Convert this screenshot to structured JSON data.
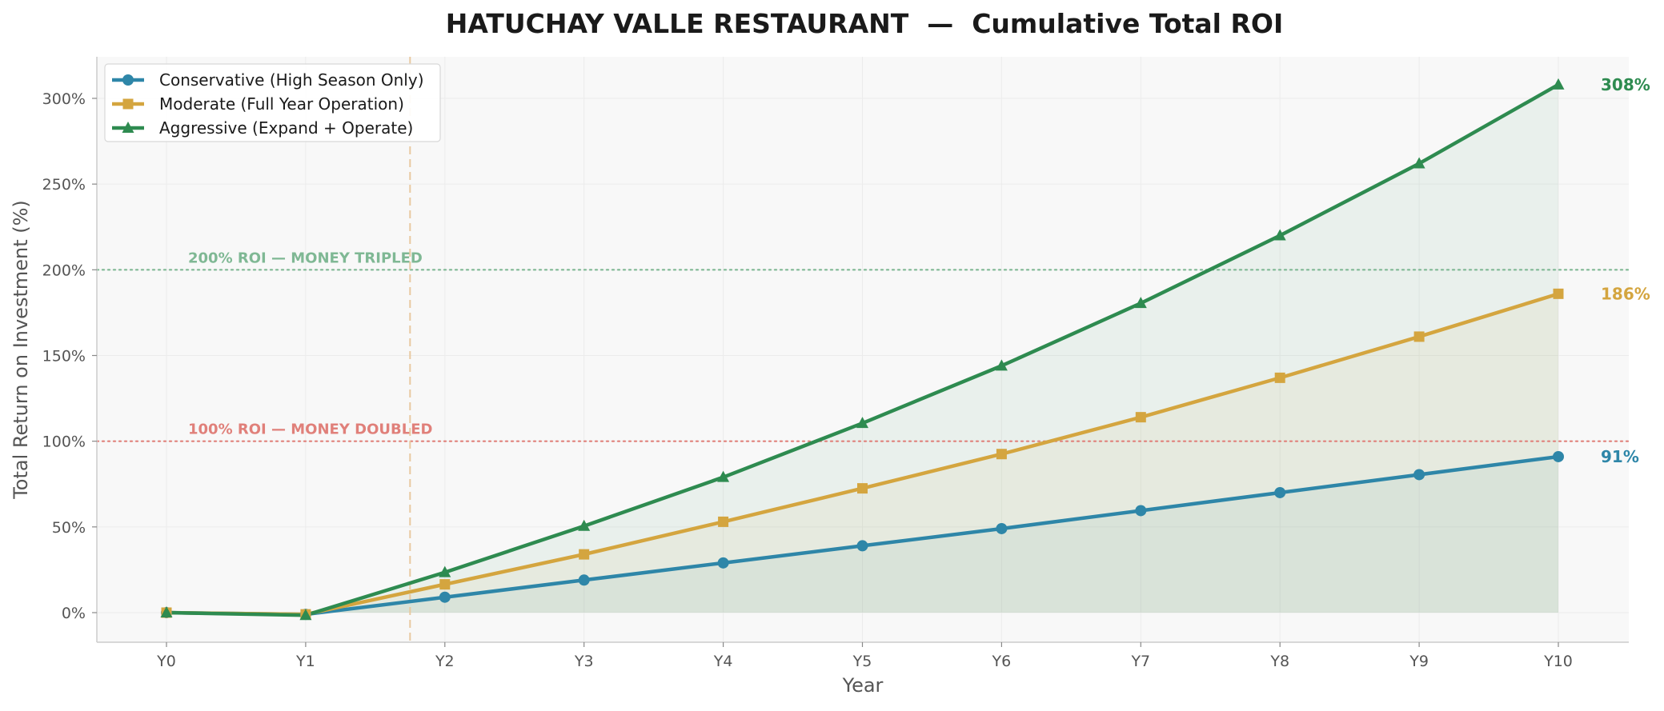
{
  "chart_data": {
    "type": "line",
    "title": "HATUCHAY VALLE RESTAURANT  —  Cumulative Total ROI",
    "xlabel": "Year",
    "ylabel": "Total Return on Investment (%)",
    "categories": [
      "Y0",
      "Y1",
      "Y2",
      "Y3",
      "Y4",
      "Y5",
      "Y6",
      "Y7",
      "Y8",
      "Y9",
      "Y10"
    ],
    "ylim": [
      -16,
      325
    ],
    "yticks": [
      0,
      50,
      100,
      150,
      200,
      250,
      300
    ],
    "ytick_labels": [
      "0%",
      "50%",
      "100%",
      "150%",
      "200%",
      "250%",
      "300%"
    ],
    "grid": true,
    "legend_position": "top-left",
    "marker_line_after": "Y1",
    "series": [
      {
        "name": "Conservative (High Season Only)",
        "color": "#2e86a8",
        "marker": "circle",
        "values": [
          0,
          -1,
          9,
          19,
          29,
          39,
          49,
          59.5,
          70,
          80.5,
          91
        ],
        "end_label": "91%"
      },
      {
        "name": "Moderate (Full Year Operation)",
        "color": "#d4a53f",
        "marker": "square",
        "values": [
          0,
          -1,
          16.5,
          34,
          53,
          72.5,
          92.5,
          114,
          137,
          161,
          186
        ],
        "end_label": "186%"
      },
      {
        "name": "Aggressive (Expand + Operate)",
        "color": "#2e8b50",
        "marker": "triangle",
        "values": [
          0,
          -1.5,
          23.5,
          50.5,
          79,
          110.5,
          144,
          180.5,
          220,
          262,
          308
        ],
        "end_label": "308%"
      }
    ],
    "reference_lines": [
      {
        "value": 200,
        "label": "200% ROI — MONEY TRIPLED",
        "color": "#7fb894"
      },
      {
        "value": 100,
        "label": "100% ROI — MONEY DOUBLED",
        "color": "#e0807a"
      }
    ]
  }
}
